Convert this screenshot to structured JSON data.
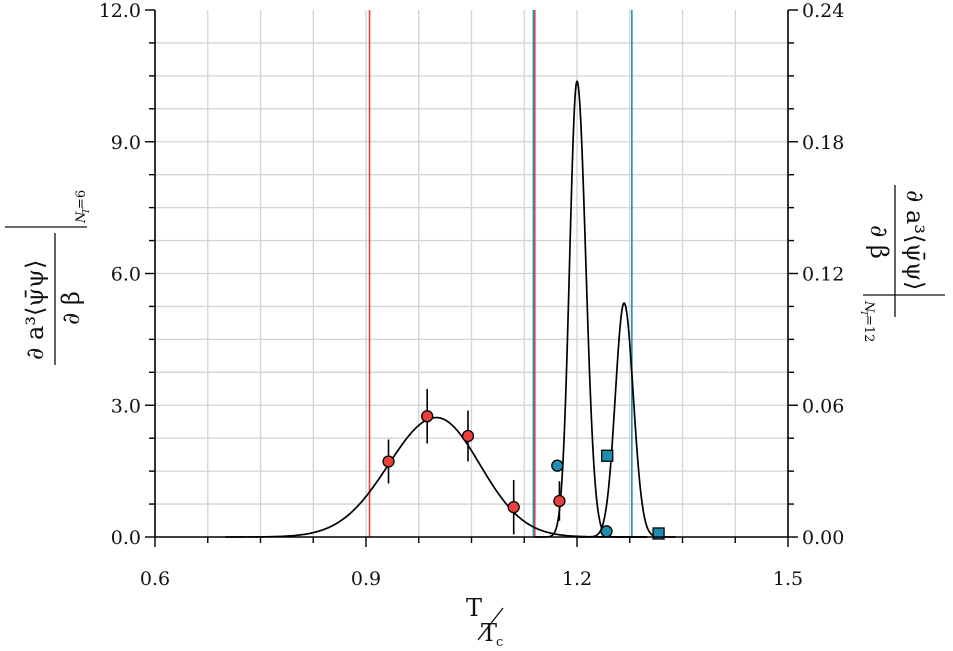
{
  "chart_data": {
    "type": "scatter",
    "grid": true,
    "x_axis": {
      "label_num": "T",
      "label_den": "T",
      "label_den_sub": "c",
      "range": [
        0.6,
        1.5
      ],
      "ticks": [
        "0.6",
        "0.9",
        "1.2",
        "1.5"
      ],
      "tick_values": [
        0.6,
        0.9,
        1.2,
        1.5
      ]
    },
    "y_left": {
      "range": [
        0.0,
        12.0
      ],
      "ticks": [
        "0.0",
        "3.0",
        "6.0",
        "9.0",
        "12.0"
      ],
      "tick_values": [
        0,
        3,
        6,
        9,
        12
      ],
      "label_num": "∂ a³⟨ψ̄ψ⟩",
      "label_den": "∂ β",
      "label_sub": "N",
      "label_sub2": "T",
      "label_sub3": "=6"
    },
    "y_right": {
      "range": [
        0.0,
        0.24
      ],
      "ticks": [
        "0.00",
        "0.06",
        "0.12",
        "0.18",
        "0.24"
      ],
      "tick_values": [
        0,
        0.06,
        0.12,
        0.18,
        0.24
      ],
      "label_num": "∂ a³⟨ψ̄ψ⟩",
      "label_den": "∂ β",
      "label_sub": "N",
      "label_sub2": "T",
      "label_sub3": "=12"
    },
    "vertical_lines": [
      {
        "x": 0.905,
        "color": "#e8403c"
      },
      {
        "x": 1.14,
        "color": "#e8403c"
      },
      {
        "x": 1.138,
        "color": "#1e90b4"
      },
      {
        "x": 1.278,
        "color": "#1e90b4"
      }
    ],
    "series": [
      {
        "axis": "left",
        "marker": "circle",
        "color": "#e8403c",
        "points": [
          {
            "x": 0.932,
            "y": 1.72,
            "err": 0.5
          },
          {
            "x": 0.987,
            "y": 2.75,
            "err": 0.62
          },
          {
            "x": 1.045,
            "y": 2.3,
            "err": 0.58
          },
          {
            "x": 1.11,
            "y": 0.68,
            "err": 0.62
          },
          {
            "x": 1.175,
            "y": 0.82,
            "err": 0.45
          }
        ]
      },
      {
        "axis": "right",
        "marker": "circle",
        "color": "#1e8eb0",
        "points": [
          {
            "x": 1.172,
            "y": 0.0325
          },
          {
            "x": 1.242,
            "y": 0.0026
          }
        ]
      },
      {
        "axis": "right",
        "marker": "square",
        "color": "#1e8eb0",
        "points": [
          {
            "x": 1.243,
            "y": 0.037
          },
          {
            "x": 1.316,
            "y": 0.0016
          }
        ]
      }
    ],
    "curves": [
      {
        "axis": "left",
        "amp": 2.72,
        "center": 1.0,
        "sigma_left": 0.068,
        "sigma_right": 0.062,
        "x_start": 0.7,
        "x_end": 1.3
      },
      {
        "axis": "right",
        "amp": 0.2075,
        "center": 1.2,
        "sigma_left": 0.0105,
        "sigma_right": 0.0125,
        "x_start": 1.14,
        "x_end": 1.3
      },
      {
        "axis": "right",
        "amp": 0.1065,
        "center": 1.267,
        "sigma_left": 0.0125,
        "sigma_right": 0.013,
        "x_start": 1.2,
        "x_end": 1.34
      }
    ]
  }
}
